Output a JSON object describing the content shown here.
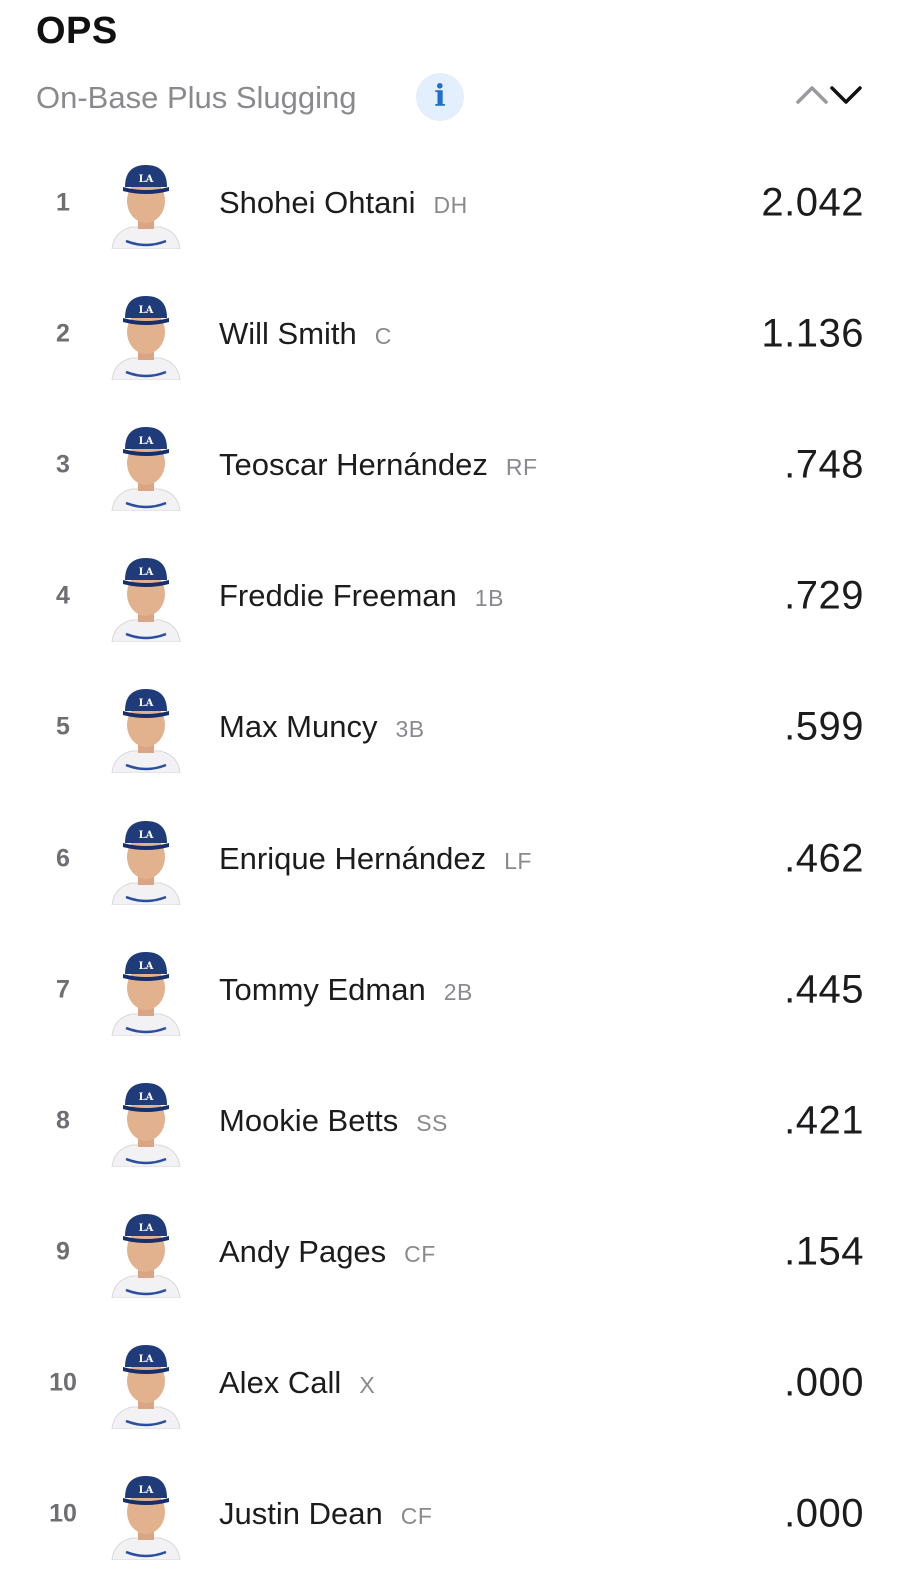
{
  "header": {
    "title": "OPS",
    "subtitle": "On-Base Plus Slugging",
    "info_glyph": "i",
    "info_icon": "info-icon",
    "sort_icon": "sort-up-down-icon"
  },
  "colors": {
    "info_bg": "#e3effc",
    "info_fg": "#1f6fd0",
    "cap": "#1f3b7a",
    "text_secondary": "#8a8a8e"
  },
  "players": [
    {
      "rank": "1",
      "name": "Shohei Ohtani",
      "position": "DH",
      "ops": "2.042",
      "avatar_icon": "player-headshot-icon"
    },
    {
      "rank": "2",
      "name": "Will Smith",
      "position": "C",
      "ops": "1.136",
      "avatar_icon": "player-headshot-icon"
    },
    {
      "rank": "3",
      "name": "Teoscar Hernández",
      "position": "RF",
      "ops": ".748",
      "avatar_icon": "player-headshot-icon"
    },
    {
      "rank": "4",
      "name": "Freddie Freeman",
      "position": "1B",
      "ops": ".729",
      "avatar_icon": "player-headshot-icon"
    },
    {
      "rank": "5",
      "name": "Max Muncy",
      "position": "3B",
      "ops": ".599",
      "avatar_icon": "player-headshot-icon"
    },
    {
      "rank": "6",
      "name": "Enrique Hernández",
      "position": "LF",
      "ops": ".462",
      "avatar_icon": "player-headshot-icon"
    },
    {
      "rank": "7",
      "name": "Tommy Edman",
      "position": "2B",
      "ops": ".445",
      "avatar_icon": "player-headshot-icon"
    },
    {
      "rank": "8",
      "name": "Mookie Betts",
      "position": "SS",
      "ops": ".421",
      "avatar_icon": "player-headshot-icon"
    },
    {
      "rank": "9",
      "name": "Andy Pages",
      "position": "CF",
      "ops": ".154",
      "avatar_icon": "player-headshot-icon"
    },
    {
      "rank": "10",
      "name": "Alex Call",
      "position": "X",
      "ops": ".000",
      "avatar_icon": "player-headshot-icon"
    },
    {
      "rank": "10",
      "name": "Justin Dean",
      "position": "CF",
      "ops": ".000",
      "avatar_icon": "player-headshot-icon"
    }
  ]
}
